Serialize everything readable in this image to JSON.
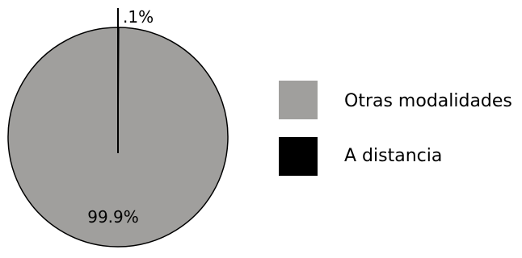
{
  "chart_data": {
    "type": "pie",
    "title": "",
    "categories": [
      "Otras modalidades",
      "A distancia"
    ],
    "values": [
      99.9,
      0.1
    ],
    "labels": [
      "99.9%",
      ".1%"
    ],
    "colors": [
      "#a09f9d",
      "#000000"
    ],
    "legend": {
      "placement": "right",
      "entries": [
        "Otras modalidades",
        "A distancia"
      ]
    }
  }
}
